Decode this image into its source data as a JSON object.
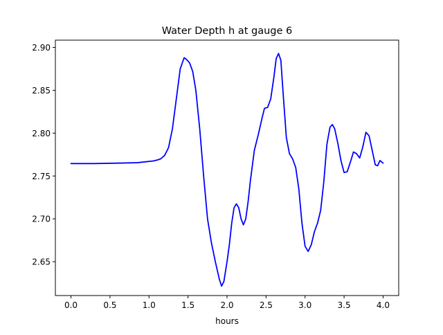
{
  "chart_data": {
    "type": "line",
    "title": "Water Depth h at gauge 6",
    "xlabel": "hours",
    "ylabel": "",
    "xlim": [
      -0.2,
      4.2
    ],
    "ylim": [
      2.6105,
      2.9085
    ],
    "xticks": [
      0.0,
      0.5,
      1.0,
      1.5,
      2.0,
      2.5,
      3.0,
      3.5,
      4.0
    ],
    "xtick_labels": [
      "0.0",
      "0.5",
      "1.0",
      "1.5",
      "2.0",
      "2.5",
      "3.0",
      "3.5",
      "4.0"
    ],
    "yticks": [
      2.65,
      2.7,
      2.75,
      2.8,
      2.85,
      2.9
    ],
    "ytick_labels": [
      "2.65",
      "2.70",
      "2.75",
      "2.80",
      "2.85",
      "2.90"
    ],
    "grid": false,
    "legend": "none",
    "series": [
      {
        "color": "#0000ff",
        "x": [
          0.0,
          0.3,
          0.6,
          0.85,
          0.95,
          1.05,
          1.1,
          1.15,
          1.2,
          1.25,
          1.3,
          1.35,
          1.4,
          1.45,
          1.48,
          1.52,
          1.56,
          1.6,
          1.65,
          1.7,
          1.75,
          1.8,
          1.85,
          1.9,
          1.93,
          1.96,
          2.0,
          2.03,
          2.06,
          2.09,
          2.12,
          2.15,
          2.18,
          2.21,
          2.24,
          2.27,
          2.3,
          2.35,
          2.4,
          2.45,
          2.48,
          2.52,
          2.56,
          2.6,
          2.63,
          2.66,
          2.69,
          2.72,
          2.76,
          2.8,
          2.84,
          2.88,
          2.92,
          2.96,
          3.0,
          3.04,
          3.08,
          3.12,
          3.16,
          3.2,
          3.24,
          3.28,
          3.32,
          3.35,
          3.38,
          3.42,
          3.46,
          3.5,
          3.54,
          3.58,
          3.62,
          3.66,
          3.7,
          3.74,
          3.78,
          3.82,
          3.86,
          3.9,
          3.93,
          3.96,
          4.0
        ],
        "values": [
          2.7645,
          2.7645,
          2.765,
          2.7655,
          2.7665,
          2.7675,
          2.7685,
          2.77,
          2.774,
          2.783,
          2.805,
          2.84,
          2.875,
          2.888,
          2.886,
          2.882,
          2.872,
          2.85,
          2.805,
          2.75,
          2.7,
          2.672,
          2.65,
          2.63,
          2.6215,
          2.627,
          2.65,
          2.67,
          2.695,
          2.713,
          2.7175,
          2.713,
          2.7,
          2.693,
          2.7,
          2.72,
          2.745,
          2.78,
          2.798,
          2.818,
          2.829,
          2.83,
          2.84,
          2.865,
          2.887,
          2.893,
          2.885,
          2.845,
          2.795,
          2.776,
          2.77,
          2.76,
          2.735,
          2.695,
          2.668,
          2.662,
          2.67,
          2.685,
          2.695,
          2.71,
          2.743,
          2.787,
          2.807,
          2.81,
          2.805,
          2.788,
          2.768,
          2.754,
          2.755,
          2.766,
          2.778,
          2.776,
          2.771,
          2.784,
          2.801,
          2.797,
          2.78,
          2.763,
          2.762,
          2.768,
          2.765
        ]
      }
    ]
  }
}
